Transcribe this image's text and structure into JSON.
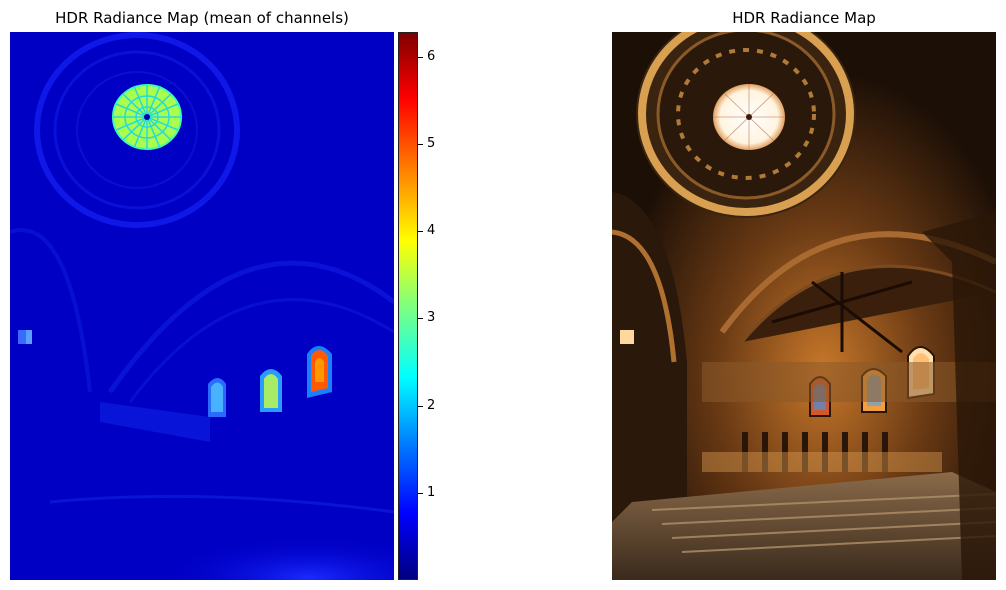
{
  "panels": {
    "left_title": "HDR Radiance Map (mean of channels)",
    "right_title": "HDR Radiance Map"
  },
  "colorbar": {
    "colormap": "jet",
    "min": 0,
    "max": 6.3,
    "ticks": [
      "1",
      "2",
      "3",
      "4",
      "5",
      "6"
    ]
  },
  "colors": {
    "jet_low": "#00007f",
    "jet_mid": "#7fff7f",
    "jet_high": "#7f0000",
    "warm_interior": "#c8782a"
  }
}
